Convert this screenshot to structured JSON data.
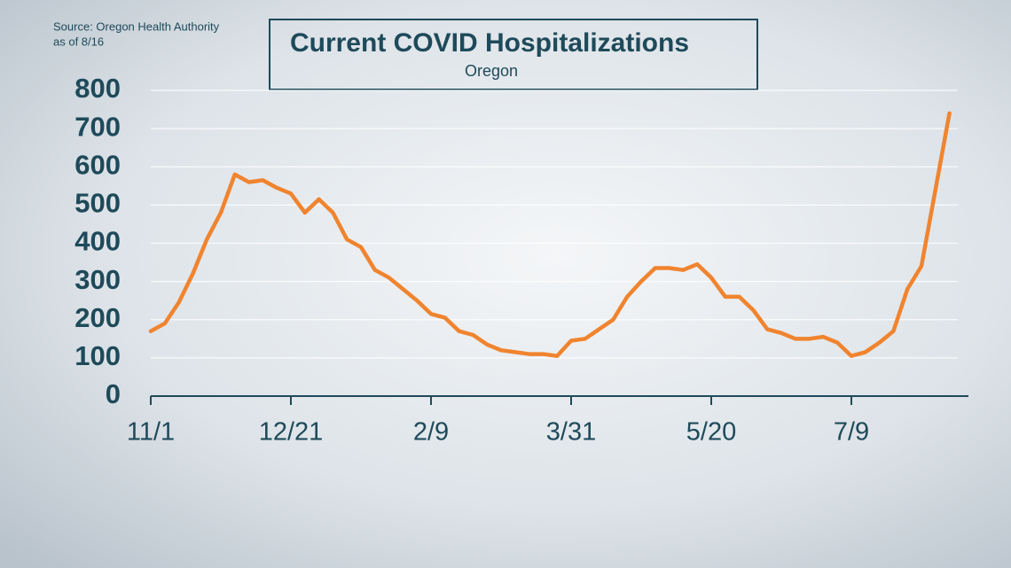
{
  "chart_data": {
    "type": "line",
    "title": "Current COVID Hospitalizations",
    "subtitle": "Oregon",
    "source": "Source: Oregon Health Authority",
    "source_date": "as of 8/16",
    "categories": [
      "11/1",
      null,
      null,
      null,
      null,
      null,
      null,
      null,
      null,
      null,
      "12/21",
      null,
      null,
      null,
      null,
      null,
      null,
      null,
      null,
      null,
      "2/9",
      null,
      null,
      null,
      null,
      null,
      null,
      null,
      null,
      null,
      "3/31",
      null,
      null,
      null,
      null,
      null,
      null,
      null,
      null,
      null,
      "5/20",
      null,
      null,
      null,
      null,
      null,
      null,
      null,
      null,
      null,
      "7/9",
      null,
      null,
      null,
      null,
      null,
      null,
      null
    ],
    "values": [
      170,
      190,
      245,
      320,
      410,
      480,
      580,
      560,
      565,
      545,
      530,
      480,
      515,
      480,
      410,
      390,
      330,
      310,
      280,
      250,
      215,
      205,
      170,
      160,
      135,
      120,
      115,
      110,
      110,
      105,
      145,
      150,
      175,
      200,
      260,
      300,
      335,
      335,
      330,
      345,
      310,
      260,
      260,
      225,
      175,
      165,
      150,
      150,
      155,
      140,
      105,
      115,
      140,
      170,
      280,
      340,
      540,
      740
    ],
    "color": "#f0842f",
    "ylim": [
      0,
      800
    ],
    "yticks": [
      0,
      100,
      200,
      300,
      400,
      500,
      600,
      700,
      800
    ],
    "grid": true
  }
}
